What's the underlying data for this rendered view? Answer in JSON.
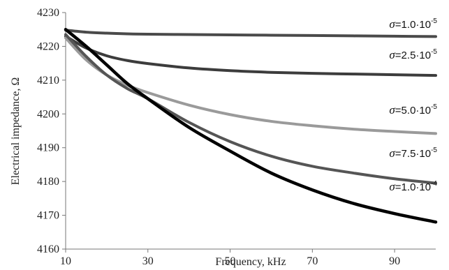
{
  "chart_data": {
    "type": "line",
    "xlabel": "Frequency, kHz",
    "ylabel": "Electrical impedance, Ω",
    "xlim": [
      10,
      100
    ],
    "ylim": [
      4160,
      4230
    ],
    "xticks": [
      "10",
      "30",
      "50",
      "70",
      "90"
    ],
    "xtick_values": [
      10,
      30,
      50,
      70,
      90
    ],
    "yticks": [
      "4160",
      "4170",
      "4180",
      "4190",
      "4200",
      "4210",
      "4220",
      "4230"
    ],
    "ytick_values": [
      4160,
      4170,
      4180,
      4190,
      4200,
      4210,
      4220,
      4230
    ],
    "grid": false,
    "legend": "inline labels at right end of each line",
    "series": [
      {
        "name": "σ=1.0·10-5",
        "label_symbol": "σ",
        "label_eq": "=1.0·10",
        "label_exp": "-5",
        "color": "#4a4a4a",
        "x": [
          10,
          15,
          20,
          25,
          30,
          40,
          50,
          60,
          70,
          80,
          90,
          100
        ],
        "y": [
          4224.8,
          4224.2,
          4223.9,
          4223.7,
          4223.6,
          4223.5,
          4223.4,
          4223.3,
          4223.2,
          4223.1,
          4223.0,
          4222.9
        ]
      },
      {
        "name": "σ=2.5·10-5",
        "label_symbol": "σ",
        "label_eq": "=2.5·10",
        "label_exp": "-5",
        "color": "#3c3c3c",
        "x": [
          10,
          15,
          20,
          25,
          30,
          40,
          50,
          60,
          70,
          80,
          90,
          100
        ],
        "y": [
          4223.0,
          4219.5,
          4217.2,
          4215.8,
          4214.9,
          4213.6,
          4212.8,
          4212.3,
          4212.0,
          4211.8,
          4211.6,
          4211.4
        ]
      },
      {
        "name": "σ=5.0·10-5",
        "label_symbol": "σ",
        "label_eq": "=5.0·10",
        "label_exp": "-5",
        "color": "#9a9a9a",
        "x": [
          10,
          15,
          20,
          25,
          30,
          40,
          50,
          60,
          70,
          80,
          90,
          100
        ],
        "y": [
          4222.5,
          4216.0,
          4211.5,
          4208.5,
          4206.3,
          4202.6,
          4199.8,
          4197.8,
          4196.5,
          4195.5,
          4194.8,
          4194.2
        ]
      },
      {
        "name": "σ=7.5·10-5",
        "label_symbol": "σ",
        "label_eq": "=7.5·10",
        "label_exp": "-5",
        "color": "#555555",
        "x": [
          10,
          15,
          20,
          25,
          30,
          40,
          50,
          60,
          70,
          80,
          90,
          100
        ],
        "y": [
          4223.5,
          4217.0,
          4211.5,
          4207.5,
          4204.5,
          4197.5,
          4191.8,
          4187.5,
          4184.5,
          4182.5,
          4180.8,
          4179.5
        ]
      },
      {
        "name": "σ=1.0·10-4",
        "label_symbol": "σ",
        "label_eq": "=1.0·10",
        "label_exp": "-4",
        "color": "#000000",
        "x": [
          10,
          15,
          20,
          25,
          30,
          40,
          50,
          60,
          70,
          80,
          90,
          100
        ],
        "y": [
          4225.0,
          4220.0,
          4214.5,
          4209.0,
          4204.5,
          4196.0,
          4189.0,
          4182.5,
          4177.5,
          4173.5,
          4170.5,
          4168.0
        ]
      }
    ]
  }
}
